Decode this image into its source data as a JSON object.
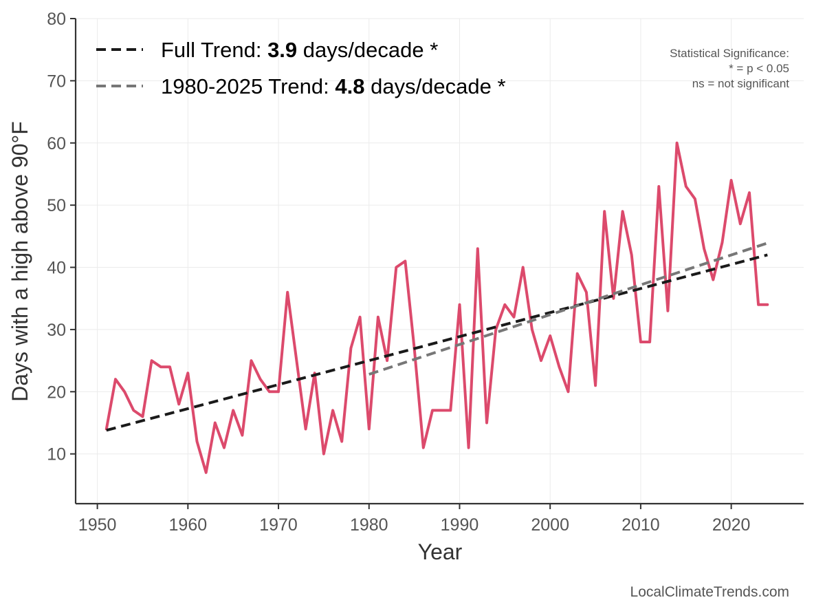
{
  "chart_data": {
    "type": "line",
    "title": "",
    "xlabel": "Year",
    "ylabel": "Days with a high above 90°F",
    "xlim": [
      1947.6,
      1928.0
    ],
    "ylim": [
      2,
      80
    ],
    "x_ticks": [
      "1950",
      "1960",
      "1970",
      "1980",
      "1990",
      "2000",
      "2010",
      "2020"
    ],
    "y_ticks": [
      "10",
      "20",
      "30",
      "40",
      "50",
      "60",
      "70",
      "80"
    ],
    "grid": true,
    "x": [
      1951,
      1952,
      1953,
      1954,
      1955,
      1956,
      1957,
      1958,
      1959,
      1960,
      1961,
      1962,
      1963,
      1964,
      1965,
      1966,
      1967,
      1968,
      1969,
      1970,
      1971,
      1972,
      1973,
      1974,
      1975,
      1976,
      1977,
      1978,
      1979,
      1980,
      1981,
      1982,
      1983,
      1984,
      1985,
      1986,
      1987,
      1988,
      1989,
      1990,
      1991,
      1992,
      1993,
      1994,
      1995,
      1996,
      1997,
      1998,
      1999,
      2000,
      2001,
      2002,
      2003,
      2004,
      2005,
      2006,
      2007,
      2008,
      2009,
      2010,
      2011,
      2012,
      2013,
      2014,
      2015,
      2016,
      2017,
      2018,
      2019,
      2020,
      2021,
      2022,
      2023,
      2024
    ],
    "series": [
      {
        "color": "#dc4a6c",
        "values": [
          14,
          22,
          20,
          17,
          16,
          25,
          24,
          24,
          18,
          23,
          12,
          7,
          15,
          11,
          17,
          13,
          25,
          22,
          20,
          20,
          36,
          25,
          14,
          23,
          10,
          17,
          12,
          27,
          32,
          14,
          32,
          25,
          40,
          41,
          27,
          11,
          17,
          17,
          17,
          34,
          11,
          43,
          15,
          30,
          34,
          32,
          40,
          30,
          25,
          29,
          24,
          20,
          39,
          36,
          21,
          49,
          35,
          49,
          42,
          28,
          28,
          53,
          33,
          60,
          53,
          51,
          43,
          38,
          44,
          54,
          47,
          52,
          34,
          34
        ]
      }
    ],
    "trend_lines": [
      {
        "x": [
          1951,
          2024
        ],
        "y": [
          13.8,
          42.0
        ],
        "color": "#1a1a1a"
      },
      {
        "x": [
          1980,
          2024
        ],
        "y": [
          22.8,
          43.9
        ],
        "color": "#777777"
      }
    ],
    "legend": {
      "placement": "top-left",
      "entries": [
        {
          "prefix": "Full Trend: ",
          "value": "3.9",
          "suffix": " days/decade *",
          "color": "#1a1a1a"
        },
        {
          "prefix": "1980-2025 Trend: ",
          "value": "4.8",
          "suffix": " days/decade *",
          "color": "#777777"
        }
      ]
    },
    "significance_note": [
      "Statistical Significance:",
      "* = p < 0.05",
      "ns = not significant"
    ],
    "credit": "LocalClimateTrends.com"
  }
}
